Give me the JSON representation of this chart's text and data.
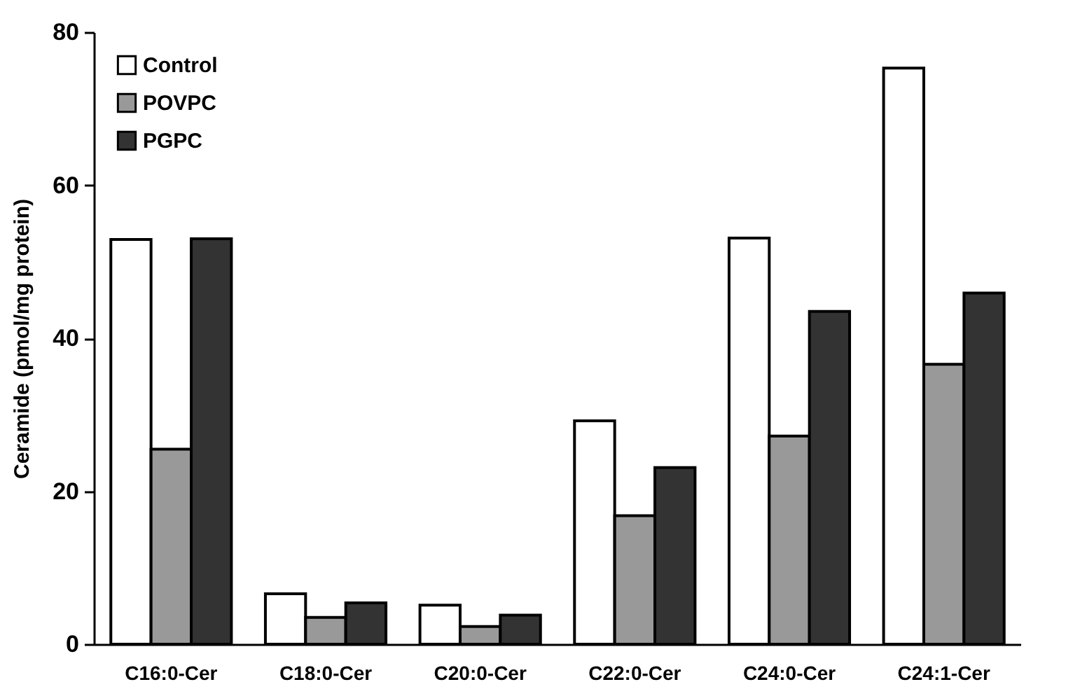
{
  "chart_data": {
    "type": "bar",
    "ylabel": "Ceramide (pmol/mg protein)",
    "categories": [
      "C16:0-Cer",
      "C18:0-Cer",
      "C20:0-Cer",
      "C22:0-Cer",
      "C24:0-Cer",
      "C24:1-Cer"
    ],
    "series": [
      {
        "name": "Control",
        "color": "#ffffff",
        "values": [
          52.9,
          6.6,
          5.1,
          29.2,
          53.1,
          75.3
        ]
      },
      {
        "name": "POVPC",
        "color": "#999999",
        "values": [
          25.5,
          3.5,
          2.3,
          16.8,
          27.2,
          36.6
        ]
      },
      {
        "name": "PGPC",
        "color": "#333333",
        "values": [
          53,
          5.4,
          3.8,
          23.1,
          43.5,
          45.9
        ]
      }
    ],
    "ylim": [
      0,
      80
    ],
    "yticks": [
      0,
      20,
      40,
      60,
      80
    ],
    "grid": false,
    "legend": "top left"
  }
}
